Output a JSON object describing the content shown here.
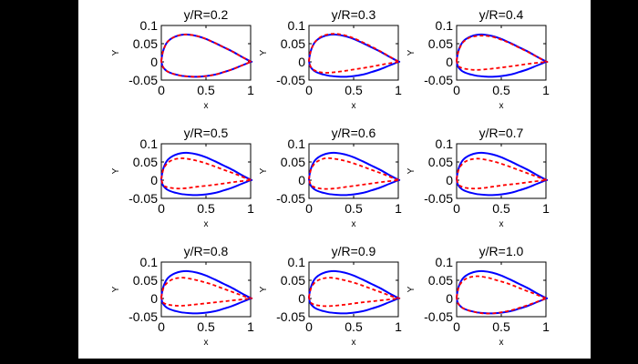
{
  "figure": {
    "background": "#000000",
    "paper_color": "#ffffff",
    "axes_line_color": "#000000"
  },
  "chart_data": {
    "type": "line",
    "grid_layout": {
      "rows": 3,
      "cols": 3
    },
    "xlabel": "x",
    "ylabel": "Y",
    "xlim": [
      0,
      1
    ],
    "ylim": [
      -0.05,
      0.1
    ],
    "xticks": [
      {
        "value": 0,
        "label": "0"
      },
      {
        "value": 0.5,
        "label": "0.5"
      },
      {
        "value": 1,
        "label": "1"
      }
    ],
    "yticks": [
      {
        "value": 0.1,
        "label": "0.1"
      },
      {
        "value": 0.05,
        "label": "0.05"
      },
      {
        "value": 0,
        "label": "0"
      },
      {
        "value": -0.05,
        "label": "-0.05"
      }
    ],
    "series_styles": [
      {
        "name": "blue-solid-section",
        "color": "#0000ff",
        "style": "solid"
      },
      {
        "name": "red-dashed-section",
        "color": "#ff0000",
        "style": "dashed"
      }
    ],
    "blue_upper": [
      [
        0,
        0.003
      ],
      [
        0.01,
        0.02
      ],
      [
        0.03,
        0.037
      ],
      [
        0.06,
        0.052
      ],
      [
        0.1,
        0.062
      ],
      [
        0.15,
        0.069
      ],
      [
        0.22,
        0.074
      ],
      [
        0.3,
        0.075
      ],
      [
        0.4,
        0.071
      ],
      [
        0.5,
        0.063
      ],
      [
        0.6,
        0.052
      ],
      [
        0.7,
        0.04
      ],
      [
        0.8,
        0.028
      ],
      [
        0.9,
        0.014
      ],
      [
        1,
        0.001
      ]
    ],
    "blue_lower": [
      [
        0,
        0.003
      ],
      [
        0.01,
        -0.01
      ],
      [
        0.03,
        -0.018
      ],
      [
        0.06,
        -0.025
      ],
      [
        0.1,
        -0.03
      ],
      [
        0.15,
        -0.034
      ],
      [
        0.22,
        -0.038
      ],
      [
        0.3,
        -0.04
      ],
      [
        0.4,
        -0.041
      ],
      [
        0.5,
        -0.039
      ],
      [
        0.6,
        -0.035
      ],
      [
        0.7,
        -0.028
      ],
      [
        0.8,
        -0.02
      ],
      [
        0.9,
        -0.01
      ],
      [
        1,
        0
      ]
    ],
    "subplots": [
      {
        "title": "y/R=0.2",
        "red_upper": [
          [
            0,
            0.003
          ],
          [
            0.01,
            0.02
          ],
          [
            0.03,
            0.037
          ],
          [
            0.06,
            0.052
          ],
          [
            0.1,
            0.062
          ],
          [
            0.15,
            0.069
          ],
          [
            0.22,
            0.074
          ],
          [
            0.3,
            0.075
          ],
          [
            0.4,
            0.071
          ],
          [
            0.5,
            0.063
          ],
          [
            0.6,
            0.052
          ],
          [
            0.7,
            0.04
          ],
          [
            0.8,
            0.028
          ],
          [
            0.9,
            0.014
          ],
          [
            1,
            0.001
          ]
        ],
        "red_lower": [
          [
            0,
            0.003
          ],
          [
            0.01,
            -0.01
          ],
          [
            0.03,
            -0.018
          ],
          [
            0.06,
            -0.025
          ],
          [
            0.1,
            -0.03
          ],
          [
            0.15,
            -0.034
          ],
          [
            0.22,
            -0.038
          ],
          [
            0.3,
            -0.04
          ],
          [
            0.4,
            -0.041
          ],
          [
            0.5,
            -0.039
          ],
          [
            0.6,
            -0.035
          ],
          [
            0.7,
            -0.028
          ],
          [
            0.8,
            -0.02
          ],
          [
            0.9,
            -0.01
          ],
          [
            1,
            0
          ]
        ]
      },
      {
        "title": "y/R=0.3",
        "red_upper": [
          [
            0,
            0.003
          ],
          [
            0.01,
            0.02
          ],
          [
            0.03,
            0.037
          ],
          [
            0.06,
            0.052
          ],
          [
            0.1,
            0.063
          ],
          [
            0.15,
            0.071
          ],
          [
            0.22,
            0.076
          ],
          [
            0.3,
            0.077
          ],
          [
            0.4,
            0.073
          ],
          [
            0.5,
            0.065
          ],
          [
            0.6,
            0.054
          ],
          [
            0.7,
            0.042
          ],
          [
            0.8,
            0.029
          ],
          [
            0.9,
            0.015
          ],
          [
            1,
            0.001
          ]
        ],
        "red_lower": [
          [
            0,
            0.003
          ],
          [
            0.02,
            -0.014
          ],
          [
            0.06,
            -0.023
          ],
          [
            0.12,
            -0.028
          ],
          [
            0.2,
            -0.03
          ],
          [
            0.3,
            -0.028
          ],
          [
            0.42,
            -0.024
          ],
          [
            0.55,
            -0.019
          ],
          [
            0.7,
            -0.013
          ],
          [
            0.85,
            -0.006
          ],
          [
            1,
            0
          ]
        ]
      },
      {
        "title": "y/R=0.4",
        "red_upper": [
          [
            0,
            0.003
          ],
          [
            0.01,
            0.019
          ],
          [
            0.03,
            0.035
          ],
          [
            0.06,
            0.05
          ],
          [
            0.1,
            0.06
          ],
          [
            0.15,
            0.067
          ],
          [
            0.22,
            0.071
          ],
          [
            0.3,
            0.072
          ],
          [
            0.4,
            0.069
          ],
          [
            0.5,
            0.061
          ],
          [
            0.6,
            0.051
          ],
          [
            0.7,
            0.039
          ],
          [
            0.8,
            0.027
          ],
          [
            0.9,
            0.014
          ],
          [
            1,
            0.001
          ]
        ],
        "red_lower": [
          [
            0,
            0.003
          ],
          [
            0.02,
            -0.011
          ],
          [
            0.06,
            -0.017
          ],
          [
            0.12,
            -0.02
          ],
          [
            0.2,
            -0.022
          ],
          [
            0.3,
            -0.021
          ],
          [
            0.42,
            -0.018
          ],
          [
            0.55,
            -0.014
          ],
          [
            0.7,
            -0.009
          ],
          [
            0.85,
            -0.004
          ],
          [
            1,
            0
          ]
        ]
      },
      {
        "title": "y/R=0.5",
        "red_upper": [
          [
            0,
            0.003
          ],
          [
            0.01,
            0.018
          ],
          [
            0.03,
            0.034
          ],
          [
            0.07,
            0.047
          ],
          [
            0.12,
            0.055
          ],
          [
            0.18,
            0.059
          ],
          [
            0.25,
            0.06
          ],
          [
            0.35,
            0.056
          ],
          [
            0.45,
            0.05
          ],
          [
            0.55,
            0.042
          ],
          [
            0.65,
            0.033
          ],
          [
            0.75,
            0.024
          ],
          [
            0.85,
            0.015
          ],
          [
            0.95,
            0.005
          ],
          [
            1,
            0.001
          ]
        ],
        "red_lower": [
          [
            0,
            0.003
          ],
          [
            0.02,
            -0.013
          ],
          [
            0.05,
            -0.018
          ],
          [
            0.1,
            -0.021
          ],
          [
            0.18,
            -0.023
          ],
          [
            0.28,
            -0.022
          ],
          [
            0.4,
            -0.018
          ],
          [
            0.55,
            -0.014
          ],
          [
            0.7,
            -0.009
          ],
          [
            0.85,
            -0.004
          ],
          [
            1,
            0
          ]
        ]
      },
      {
        "title": "y/R=0.6",
        "red_upper": [
          [
            0,
            0.003
          ],
          [
            0.01,
            0.018
          ],
          [
            0.03,
            0.034
          ],
          [
            0.07,
            0.047
          ],
          [
            0.12,
            0.055
          ],
          [
            0.18,
            0.06
          ],
          [
            0.25,
            0.06
          ],
          [
            0.35,
            0.056
          ],
          [
            0.45,
            0.05
          ],
          [
            0.55,
            0.042
          ],
          [
            0.65,
            0.033
          ],
          [
            0.75,
            0.024
          ],
          [
            0.85,
            0.015
          ],
          [
            0.95,
            0.005
          ],
          [
            1,
            0.001
          ]
        ],
        "red_lower": [
          [
            0,
            0.003
          ],
          [
            0.02,
            -0.013
          ],
          [
            0.05,
            -0.018
          ],
          [
            0.1,
            -0.022
          ],
          [
            0.18,
            -0.024
          ],
          [
            0.28,
            -0.023
          ],
          [
            0.4,
            -0.019
          ],
          [
            0.55,
            -0.014
          ],
          [
            0.7,
            -0.009
          ],
          [
            0.85,
            -0.004
          ],
          [
            1,
            0
          ]
        ]
      },
      {
        "title": "y/R=0.7",
        "red_upper": [
          [
            0,
            0.003
          ],
          [
            0.01,
            0.018
          ],
          [
            0.03,
            0.033
          ],
          [
            0.07,
            0.046
          ],
          [
            0.12,
            0.054
          ],
          [
            0.18,
            0.058
          ],
          [
            0.25,
            0.059
          ],
          [
            0.35,
            0.055
          ],
          [
            0.45,
            0.049
          ],
          [
            0.55,
            0.041
          ],
          [
            0.65,
            0.032
          ],
          [
            0.75,
            0.023
          ],
          [
            0.85,
            0.014
          ],
          [
            0.95,
            0.005
          ],
          [
            1,
            0.001
          ]
        ],
        "red_lower": [
          [
            0,
            0.003
          ],
          [
            0.02,
            -0.012
          ],
          [
            0.05,
            -0.017
          ],
          [
            0.1,
            -0.021
          ],
          [
            0.18,
            -0.023
          ],
          [
            0.28,
            -0.022
          ],
          [
            0.4,
            -0.018
          ],
          [
            0.55,
            -0.013
          ],
          [
            0.7,
            -0.009
          ],
          [
            0.85,
            -0.004
          ],
          [
            1,
            0
          ]
        ]
      },
      {
        "title": "y/R=0.8",
        "red_upper": [
          [
            0,
            0.003
          ],
          [
            0.01,
            0.017
          ],
          [
            0.03,
            0.032
          ],
          [
            0.07,
            0.044
          ],
          [
            0.12,
            0.052
          ],
          [
            0.18,
            0.056
          ],
          [
            0.25,
            0.057
          ],
          [
            0.35,
            0.053
          ],
          [
            0.45,
            0.047
          ],
          [
            0.55,
            0.04
          ],
          [
            0.65,
            0.031
          ],
          [
            0.75,
            0.022
          ],
          [
            0.85,
            0.013
          ],
          [
            0.95,
            0.004
          ],
          [
            1,
            0.001
          ]
        ],
        "red_lower": [
          [
            0,
            0.003
          ],
          [
            0.02,
            -0.011
          ],
          [
            0.05,
            -0.015
          ],
          [
            0.1,
            -0.018
          ],
          [
            0.18,
            -0.02
          ],
          [
            0.28,
            -0.019
          ],
          [
            0.4,
            -0.016
          ],
          [
            0.55,
            -0.012
          ],
          [
            0.7,
            -0.008
          ],
          [
            0.85,
            -0.004
          ],
          [
            1,
            0
          ]
        ]
      },
      {
        "title": "y/R=0.9",
        "red_upper": [
          [
            0,
            0.003
          ],
          [
            0.01,
            0.017
          ],
          [
            0.03,
            0.032
          ],
          [
            0.07,
            0.045
          ],
          [
            0.12,
            0.052
          ],
          [
            0.18,
            0.056
          ],
          [
            0.25,
            0.057
          ],
          [
            0.35,
            0.053
          ],
          [
            0.45,
            0.047
          ],
          [
            0.55,
            0.04
          ],
          [
            0.65,
            0.031
          ],
          [
            0.75,
            0.022
          ],
          [
            0.85,
            0.013
          ],
          [
            0.95,
            0.004
          ],
          [
            1,
            0.001
          ]
        ],
        "red_lower": [
          [
            0,
            0.003
          ],
          [
            0.02,
            -0.011
          ],
          [
            0.05,
            -0.016
          ],
          [
            0.1,
            -0.019
          ],
          [
            0.18,
            -0.021
          ],
          [
            0.28,
            -0.02
          ],
          [
            0.4,
            -0.017
          ],
          [
            0.55,
            -0.012
          ],
          [
            0.7,
            -0.008
          ],
          [
            0.85,
            -0.004
          ],
          [
            1,
            0
          ]
        ]
      },
      {
        "title": "y/R=1.0",
        "red_upper": [
          [
            0,
            0.003
          ],
          [
            0.01,
            0.018
          ],
          [
            0.03,
            0.035
          ],
          [
            0.07,
            0.048
          ],
          [
            0.12,
            0.056
          ],
          [
            0.18,
            0.06
          ],
          [
            0.25,
            0.061
          ],
          [
            0.35,
            0.057
          ],
          [
            0.45,
            0.05
          ],
          [
            0.55,
            0.043
          ],
          [
            0.65,
            0.034
          ],
          [
            0.75,
            0.024
          ],
          [
            0.85,
            0.015
          ],
          [
            0.95,
            0.005
          ],
          [
            1,
            0.001
          ]
        ],
        "red_lower": [
          [
            0,
            0.003
          ],
          [
            0.01,
            -0.01
          ],
          [
            0.03,
            -0.018
          ],
          [
            0.06,
            -0.025
          ],
          [
            0.1,
            -0.03
          ],
          [
            0.15,
            -0.034
          ],
          [
            0.22,
            -0.038
          ],
          [
            0.3,
            -0.041
          ],
          [
            0.4,
            -0.041
          ],
          [
            0.5,
            -0.038
          ],
          [
            0.6,
            -0.033
          ],
          [
            0.7,
            -0.026
          ],
          [
            0.8,
            -0.018
          ],
          [
            0.9,
            -0.009
          ],
          [
            1,
            0
          ]
        ]
      }
    ]
  }
}
